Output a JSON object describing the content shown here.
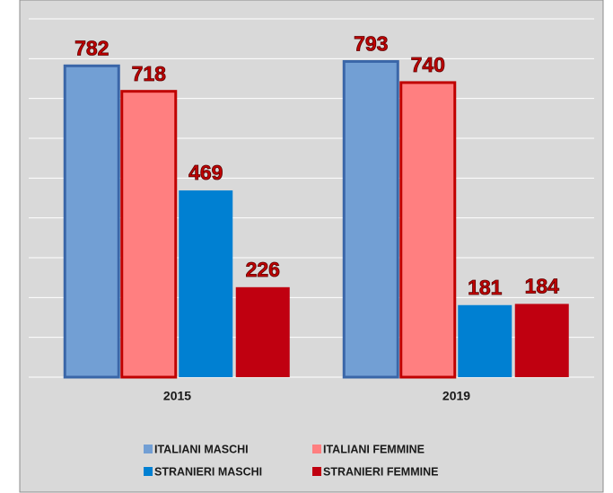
{
  "chart_data": {
    "type": "bar",
    "categories": [
      "2015",
      "2019"
    ],
    "series": [
      {
        "name": "ITALIANI MASCHI",
        "color": "#729fd4",
        "values": [
          782,
          793
        ]
      },
      {
        "name": "ITALIANI FEMMINE",
        "color": "#ff7f80",
        "values": [
          718,
          740
        ]
      },
      {
        "name": "STRANIERI MASCHI",
        "color": "#0080d2",
        "values": [
          469,
          181
        ]
      },
      {
        "name": "STRANIERI FEMMINE",
        "color": "#c00010",
        "values": [
          226,
          184
        ]
      }
    ],
    "ylim": [
      0,
      900
    ],
    "yticks": [
      0,
      100,
      200,
      300,
      400,
      500,
      600,
      700,
      800,
      900
    ],
    "grid": true
  }
}
